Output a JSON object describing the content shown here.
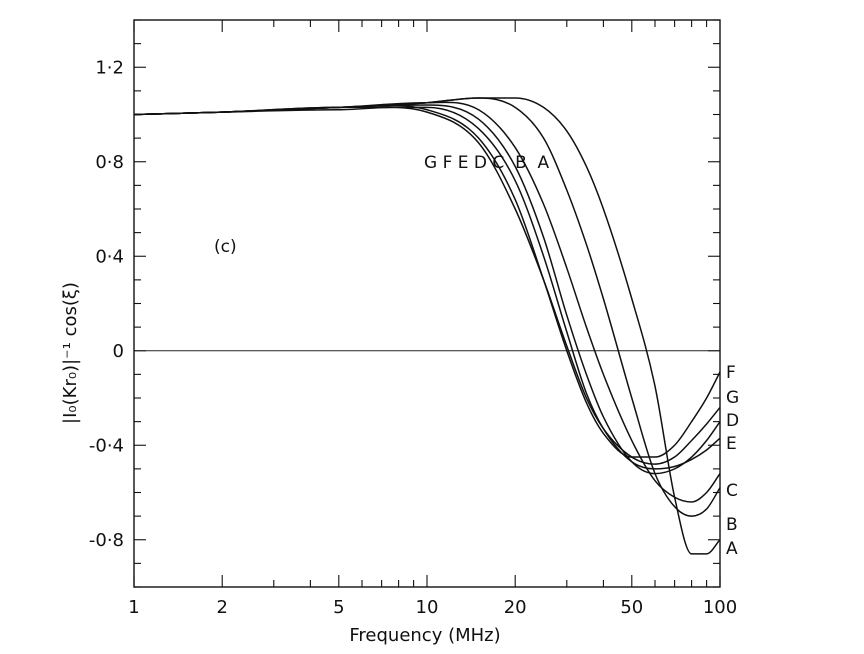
{
  "chart_data": {
    "type": "line",
    "title": "",
    "panel_label": "(c)",
    "xlabel": "Frequency (MHz)",
    "ylabel": "|I₀(Kr₀)|⁻¹ cos(ξ)",
    "xscale": "log",
    "xlim": [
      1,
      100
    ],
    "ylim": [
      -1.0,
      1.4
    ],
    "grid": false,
    "x_ticks": [
      1,
      2,
      5,
      10,
      20,
      50,
      100
    ],
    "x_tick_labels": [
      "1",
      "2",
      "5",
      "10",
      "20",
      "50",
      "100"
    ],
    "y_ticks": [
      1.2,
      0.8,
      0.4,
      0,
      -0.4,
      -0.8
    ],
    "y_tick_labels": [
      "1·2",
      "0·8",
      "0·4",
      "0",
      "-0·4",
      "-0·8"
    ],
    "reference_line": 0,
    "curve_labels_top": "G F E D C  B  A",
    "series": [
      {
        "name": "A",
        "x": [
          1,
          2,
          5,
          10,
          15,
          20,
          25,
          30,
          35,
          40,
          50,
          60,
          70,
          80,
          90,
          100
        ],
        "y": [
          1.0,
          1.01,
          1.03,
          1.05,
          1.07,
          1.07,
          1.03,
          0.93,
          0.78,
          0.6,
          0.22,
          -0.15,
          -0.62,
          -0.86,
          -0.86,
          -0.8
        ]
      },
      {
        "name": "B",
        "x": [
          1,
          2,
          5,
          10,
          15,
          20,
          25,
          30,
          35,
          40,
          50,
          60,
          70,
          80,
          90,
          100
        ],
        "y": [
          1.0,
          1.01,
          1.03,
          1.05,
          1.07,
          1.03,
          0.9,
          0.68,
          0.45,
          0.22,
          -0.2,
          -0.52,
          -0.66,
          -0.7,
          -0.67,
          -0.58
        ]
      },
      {
        "name": "C",
        "x": [
          1,
          2,
          5,
          10,
          15,
          20,
          25,
          30,
          35,
          40,
          50,
          60,
          70,
          80,
          90,
          100
        ],
        "y": [
          1.0,
          1.01,
          1.03,
          1.05,
          1.02,
          0.86,
          0.62,
          0.35,
          0.1,
          -0.1,
          -0.38,
          -0.55,
          -0.62,
          -0.64,
          -0.6,
          -0.52
        ]
      },
      {
        "name": "D",
        "x": [
          1,
          2,
          5,
          10,
          15,
          20,
          25,
          30,
          35,
          40,
          50,
          60,
          70,
          80,
          90,
          100
        ],
        "y": [
          1.0,
          1.01,
          1.03,
          1.04,
          0.98,
          0.78,
          0.48,
          0.15,
          -0.1,
          -0.28,
          -0.47,
          -0.52,
          -0.5,
          -0.45,
          -0.38,
          -0.3
        ]
      },
      {
        "name": "E",
        "x": [
          1,
          2,
          5,
          10,
          15,
          20,
          25,
          30,
          35,
          40,
          50,
          60,
          70,
          80,
          90,
          100
        ],
        "y": [
          1.0,
          1.01,
          1.03,
          1.03,
          0.94,
          0.72,
          0.4,
          0.08,
          -0.18,
          -0.33,
          -0.47,
          -0.5,
          -0.49,
          -0.46,
          -0.42,
          -0.37
        ]
      },
      {
        "name": "F",
        "x": [
          1,
          2,
          5,
          10,
          15,
          20,
          25,
          30,
          35,
          40,
          50,
          60,
          70,
          80,
          90,
          100
        ],
        "y": [
          1.0,
          1.01,
          1.03,
          1.02,
          0.9,
          0.64,
          0.3,
          0.0,
          -0.22,
          -0.35,
          -0.45,
          -0.45,
          -0.4,
          -0.3,
          -0.2,
          -0.09
        ]
      },
      {
        "name": "G",
        "x": [
          1,
          2,
          5,
          10,
          15,
          20,
          25,
          30,
          35,
          40,
          50,
          60,
          70,
          80,
          90,
          100
        ],
        "y": [
          1.0,
          1.01,
          1.02,
          1.01,
          0.88,
          0.6,
          0.3,
          0.02,
          -0.2,
          -0.33,
          -0.45,
          -0.48,
          -0.45,
          -0.38,
          -0.31,
          -0.24
        ]
      }
    ],
    "end_labels": [
      "F",
      "G",
      "D",
      "E",
      "C",
      "B",
      "A"
    ]
  }
}
